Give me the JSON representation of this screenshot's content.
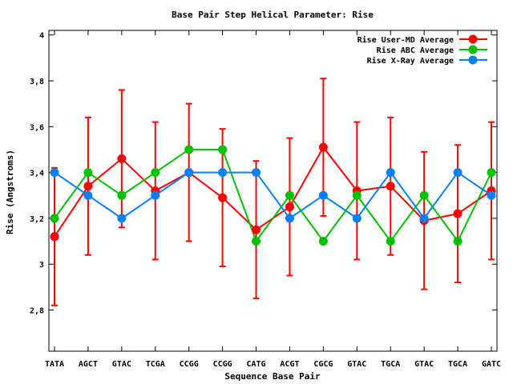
{
  "chart_data": {
    "type": "line",
    "title": "Base Pair Step Helical Parameter: Rise",
    "xlabel": "Sequence Base Pair",
    "ylabel": "Rise (Angstroms)",
    "categories": [
      "TATA",
      "AGCT",
      "GTAC",
      "TCGA",
      "CCGG",
      "CCGG",
      "CATG",
      "ACGT",
      "CGCG",
      "GTAC",
      "TGCA",
      "GTAC",
      "TGCA",
      "GATC"
    ],
    "ylim": [
      2.62,
      4.02
    ],
    "yticks": [
      2.8,
      3.0,
      3.2,
      3.4,
      3.6,
      3.8,
      4.0
    ],
    "ytick_labels": [
      "2,8",
      "3",
      "3,2",
      "3,4",
      "3,6",
      "3,8",
      "4"
    ],
    "legend_position": "top-right",
    "grid": false,
    "series": [
      {
        "name": "Rise User-MD Average",
        "color": "#ff0000",
        "values": [
          3.12,
          3.34,
          3.46,
          3.32,
          3.4,
          3.29,
          3.15,
          3.25,
          3.51,
          3.32,
          3.34,
          3.19,
          3.22,
          3.32
        ],
        "error": [
          0.3,
          0.3,
          0.3,
          0.3,
          0.3,
          0.3,
          0.3,
          0.3,
          0.3,
          0.3,
          0.3,
          0.3,
          0.3,
          0.3
        ]
      },
      {
        "name": "Rise ABC Average",
        "color": "#00c000",
        "values": [
          3.2,
          3.4,
          3.3,
          3.4,
          3.5,
          3.5,
          3.1,
          3.3,
          3.1,
          3.3,
          3.1,
          3.3,
          3.1,
          3.4
        ]
      },
      {
        "name": "Rise X-Ray Average",
        "color": "#0080ff",
        "values": [
          3.4,
          3.3,
          3.2,
          3.3,
          3.4,
          3.4,
          3.4,
          3.2,
          3.3,
          3.2,
          3.4,
          3.2,
          3.4,
          3.3
        ]
      }
    ]
  }
}
